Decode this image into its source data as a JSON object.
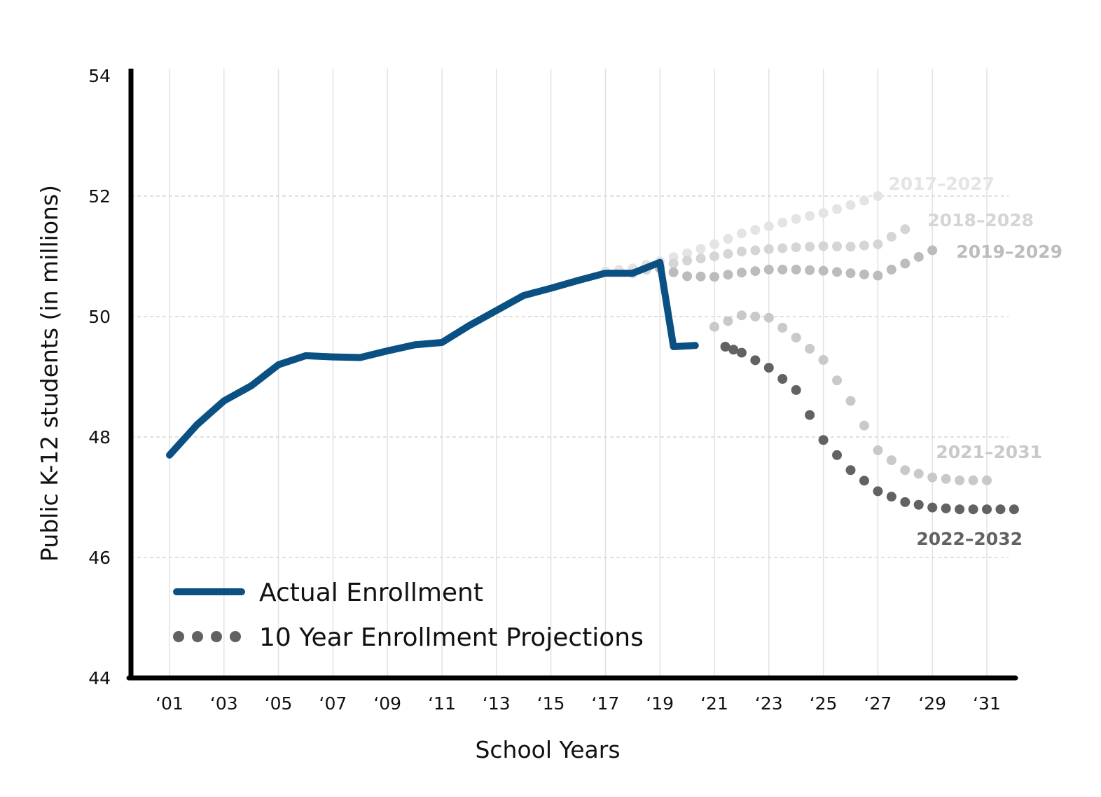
{
  "chart_data": {
    "type": "line",
    "xlabel": "School Years",
    "ylabel": "Public K-12 students (in millions)",
    "ylim": [
      44,
      54
    ],
    "xlim": [
      2000,
      2032
    ],
    "yticks": [
      44,
      46,
      48,
      50,
      52,
      54
    ],
    "xticks": [
      {
        "x": 2001,
        "label": "‘01"
      },
      {
        "x": 2003,
        "label": "‘03"
      },
      {
        "x": 2005,
        "label": "‘05"
      },
      {
        "x": 2007,
        "label": "‘07"
      },
      {
        "x": 2009,
        "label": "‘09"
      },
      {
        "x": 2011,
        "label": "‘11"
      },
      {
        "x": 2013,
        "label": "‘13"
      },
      {
        "x": 2015,
        "label": "‘15"
      },
      {
        "x": 2017,
        "label": "‘17"
      },
      {
        "x": 2019,
        "label": "‘19"
      },
      {
        "x": 2021,
        "label": "‘21"
      },
      {
        "x": 2023,
        "label": "‘23"
      },
      {
        "x": 2025,
        "label": "‘25"
      },
      {
        "x": 2027,
        "label": "‘27"
      },
      {
        "x": 2029,
        "label": "‘29"
      },
      {
        "x": 2031,
        "label": "‘31"
      }
    ],
    "grid": {
      "vertical": true,
      "horizontal_dashed": true
    },
    "legend": {
      "position": "bottom-left",
      "entries": [
        {
          "label": "Actual Enrollment",
          "style": "solid"
        },
        {
          "label": "10 Year Enrollment Projections",
          "style": "dotted"
        }
      ]
    },
    "actual": {
      "color": "#0a5083",
      "points": [
        [
          2001,
          47.7
        ],
        [
          2002,
          48.2
        ],
        [
          2003,
          48.6
        ],
        [
          2004,
          48.85
        ],
        [
          2005,
          49.2
        ],
        [
          2006,
          49.35
        ],
        [
          2007,
          49.33
        ],
        [
          2008,
          49.32
        ],
        [
          2009,
          49.43
        ],
        [
          2010,
          49.53
        ],
        [
          2011,
          49.57
        ],
        [
          2012,
          49.85
        ],
        [
          2013,
          50.1
        ],
        [
          2014,
          50.35
        ],
        [
          2015,
          50.47
        ],
        [
          2016,
          50.6
        ],
        [
          2017,
          50.72
        ],
        [
          2018,
          50.72
        ],
        [
          2019,
          50.9
        ],
        [
          2019.5,
          49.5
        ],
        [
          2020.3,
          49.52
        ]
      ]
    },
    "projections": [
      {
        "label": "2017–2027",
        "color": "#e4e4e4",
        "points": [
          [
            2017,
            50.75
          ],
          [
            2018,
            50.8
          ],
          [
            2019,
            50.92
          ],
          [
            2020,
            51.05
          ],
          [
            2021,
            51.2
          ],
          [
            2022,
            51.38
          ],
          [
            2023,
            51.5
          ],
          [
            2024,
            51.62
          ],
          [
            2025,
            51.72
          ],
          [
            2026,
            51.85
          ],
          [
            2027,
            52.0
          ]
        ]
      },
      {
        "label": "2018–2028",
        "color": "#d5d5d5",
        "points": [
          [
            2018,
            50.72
          ],
          [
            2019,
            50.83
          ],
          [
            2020,
            50.93
          ],
          [
            2021,
            51.0
          ],
          [
            2022,
            51.08
          ],
          [
            2023,
            51.12
          ],
          [
            2024,
            51.15
          ],
          [
            2025,
            51.17
          ],
          [
            2026,
            51.16
          ],
          [
            2027,
            51.2
          ],
          [
            2028,
            51.45
          ]
        ]
      },
      {
        "label": "2019–2029",
        "color": "#bcbcbc",
        "points": [
          [
            2019,
            50.8
          ],
          [
            2020,
            50.67
          ],
          [
            2021,
            50.66
          ],
          [
            2022,
            50.73
          ],
          [
            2023,
            50.78
          ],
          [
            2024,
            50.78
          ],
          [
            2025,
            50.76
          ],
          [
            2026,
            50.72
          ],
          [
            2027,
            50.68
          ],
          [
            2028,
            50.88
          ],
          [
            2029,
            51.1
          ]
        ]
      },
      {
        "label": "2021–2031",
        "color": "#c9c9c9",
        "points": [
          [
            2021,
            49.83
          ],
          [
            2022,
            50.02
          ],
          [
            2023,
            49.98
          ],
          [
            2024,
            49.65
          ],
          [
            2025,
            49.28
          ],
          [
            2026,
            48.6
          ],
          [
            2027,
            47.78
          ],
          [
            2028,
            47.45
          ],
          [
            2029,
            47.33
          ],
          [
            2030,
            47.28
          ],
          [
            2031,
            47.28
          ]
        ]
      },
      {
        "label": "2022–2032",
        "color": "#626262",
        "points": [
          [
            2021.4,
            49.5
          ],
          [
            2022,
            49.4
          ],
          [
            2023,
            49.15
          ],
          [
            2024,
            48.78
          ],
          [
            2025,
            47.95
          ],
          [
            2026,
            47.45
          ],
          [
            2027,
            47.1
          ],
          [
            2028,
            46.92
          ],
          [
            2029,
            46.83
          ],
          [
            2030,
            46.8
          ],
          [
            2031,
            46.8
          ],
          [
            2032,
            46.8
          ]
        ]
      }
    ]
  }
}
